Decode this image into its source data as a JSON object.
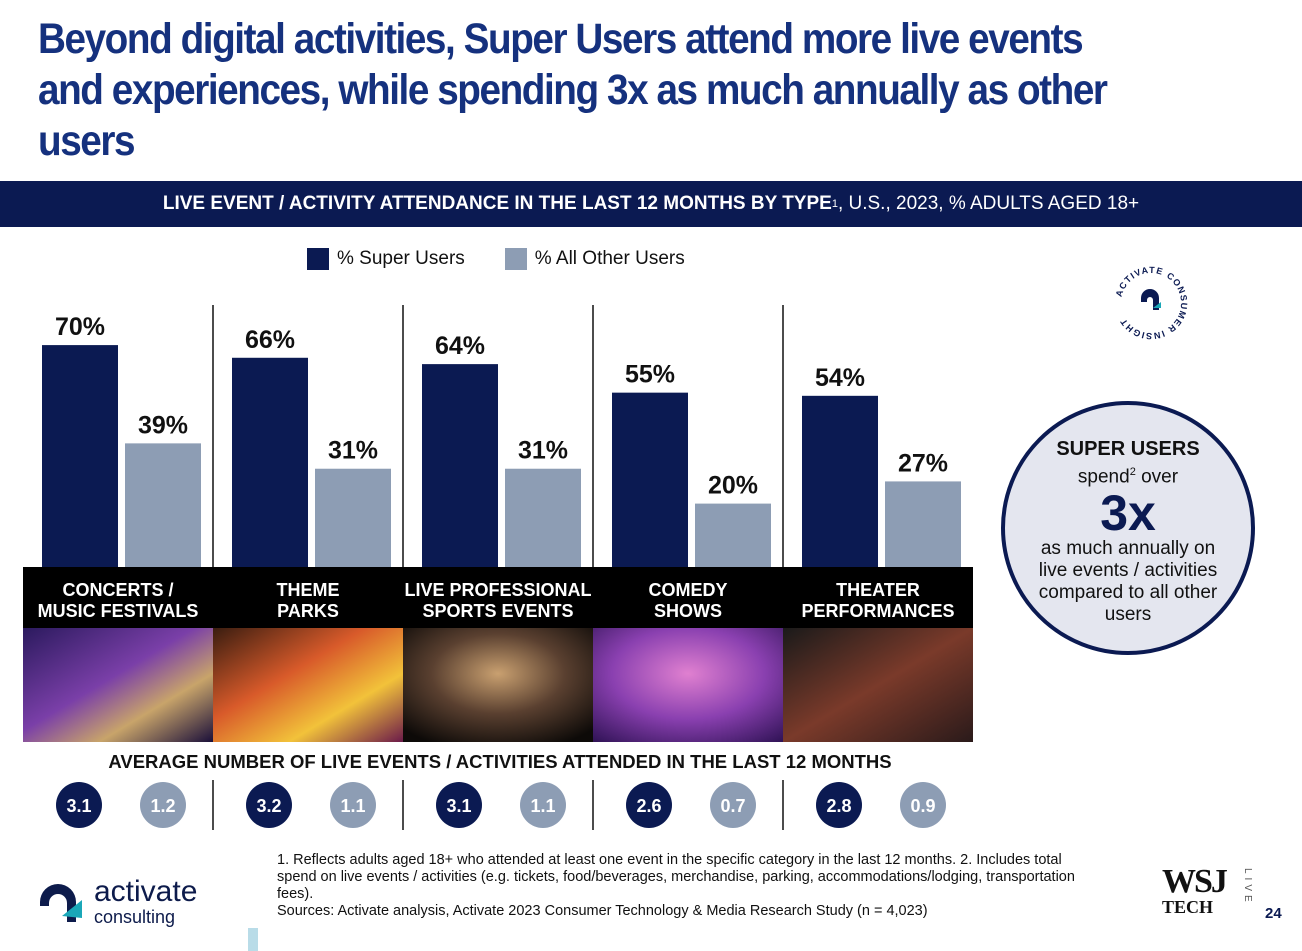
{
  "title": "Beyond digital activities, Super Users attend more live events and experiences, while spending 3x as much annually as other users",
  "banner": {
    "bold": "LIVE EVENT / ACTIVITY ATTENDANCE IN THE LAST 12 MONTHS BY TYPE",
    "sup": "1",
    "rest": ", U.S., 2023, % ADULTS AGED 18+"
  },
  "legend": {
    "super": "% Super Users",
    "other": "% All Other Users"
  },
  "colors": {
    "navy": "#0b1a52",
    "gray": "#8d9db4",
    "title_blue": "#15317e",
    "teal": "#1aa7b8"
  },
  "chart_data": {
    "type": "bar",
    "title": "LIVE EVENT / ACTIVITY ATTENDANCE IN THE LAST 12 MONTHS BY TYPE, U.S., 2023, % ADULTS AGED 18+",
    "categories": [
      [
        "CONCERTS /",
        "MUSIC FESTIVALS"
      ],
      [
        "THEME",
        "PARKS"
      ],
      [
        "LIVE PROFESSIONAL",
        "SPORTS EVENTS"
      ],
      [
        "COMEDY",
        "SHOWS"
      ],
      [
        "THEATER",
        "PERFORMANCES"
      ]
    ],
    "series": [
      {
        "name": "% Super Users",
        "values": [
          70,
          66,
          64,
          55,
          54
        ]
      },
      {
        "name": "% All Other Users",
        "values": [
          39,
          31,
          31,
          20,
          27
        ]
      }
    ],
    "ylim": [
      0,
      70
    ],
    "value_suffix": "%"
  },
  "averages": {
    "title": "AVERAGE NUMBER OF LIVE EVENTS / ACTIVITIES ATTENDED IN THE LAST 12 MONTHS",
    "super": [
      "3.1",
      "3.2",
      "3.1",
      "2.6",
      "2.8"
    ],
    "other": [
      "1.2",
      "1.1",
      "1.1",
      "0.7",
      "0.9"
    ]
  },
  "seal_text": "ACTIVATE CONSUMER INSIGHT",
  "callout": {
    "line1": "SUPER USERS",
    "line2": "spend",
    "line2_sup": "2",
    "line2_rest": " over",
    "big": "3x",
    "line4": "as much annually on live events / activities compared to all other users"
  },
  "logo": {
    "name": "activate",
    "sub": "consulting"
  },
  "footnotes": [
    "1. Reflects adults aged 18+ who attended at least one event in the specific category in the last 12 months.  2. Includes total spend on live events / activities (e.g. tickets, food/beverages, merchandise, parking, accommodations/lodging, transportation fees).",
    "Sources: Activate analysis, Activate 2023 Consumer Technology & Media Research Study (n = 4,023)"
  ],
  "wsj": {
    "mark": "WSJ",
    "sub": "TECH",
    "live": "LIVE"
  },
  "page_number": "24"
}
